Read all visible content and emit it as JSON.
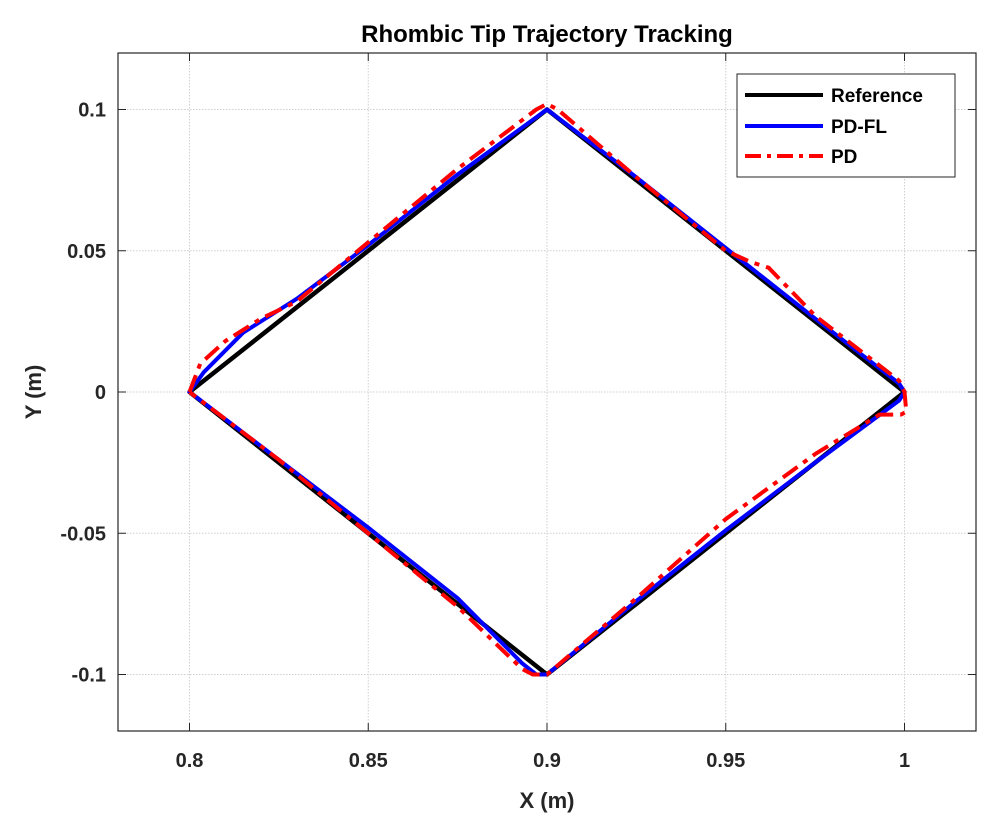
{
  "chart_data": {
    "type": "line",
    "title": "Rhombic Tip Trajectory Tracking",
    "xlabel": "X (m)",
    "ylabel": "Y (m)",
    "xlim": [
      0.78,
      1.02
    ],
    "ylim": [
      -0.12,
      0.12
    ],
    "xticks": [
      0.8,
      0.85,
      0.9,
      0.95,
      1.0
    ],
    "xtick_labels": [
      "0.8",
      "0.85",
      "0.9",
      "0.95",
      "1"
    ],
    "yticks": [
      -0.1,
      -0.05,
      0,
      0.05,
      0.1
    ],
    "ytick_labels": [
      "-0.1",
      "-0.05",
      "0",
      "0.05",
      "0.1"
    ],
    "grid": true,
    "legend_position": "top-right",
    "series": [
      {
        "name": "Reference",
        "color": "#000000",
        "style": "solid",
        "x": [
          0.8,
          0.9,
          1.0,
          0.9,
          0.8
        ],
        "y": [
          0.0,
          0.1,
          0.0,
          -0.1,
          0.0
        ]
      },
      {
        "name": "PD-FL",
        "color": "#0000ff",
        "style": "solid",
        "x": [
          0.8,
          0.804,
          0.815,
          0.83,
          0.85,
          0.875,
          0.9,
          0.925,
          0.95,
          0.975,
          0.9985,
          1.0,
          0.9985,
          0.975,
          0.95,
          0.925,
          0.9,
          0.897,
          0.893,
          0.875,
          0.85,
          0.825,
          0.8
        ],
        "y": [
          0.0,
          0.007,
          0.021,
          0.033,
          0.052,
          0.077,
          0.1,
          0.076,
          0.051,
          0.026,
          0.003,
          0.0,
          -0.003,
          -0.025,
          -0.049,
          -0.074,
          -0.1,
          -0.1,
          -0.096,
          -0.073,
          -0.048,
          -0.024,
          0.0
        ]
      },
      {
        "name": "PD",
        "color": "#ff0000",
        "style": "dashdot",
        "x": [
          0.8,
          0.803,
          0.81,
          0.82,
          0.83,
          0.85,
          0.875,
          0.897,
          0.9,
          0.903,
          0.925,
          0.95,
          0.957,
          0.962,
          0.975,
          0.9985,
          1.0,
          1.0005,
          0.999,
          0.993,
          0.975,
          0.95,
          0.925,
          0.9,
          0.896,
          0.893,
          0.875,
          0.85,
          0.825,
          0.8
        ],
        "y": [
          0.0,
          0.01,
          0.018,
          0.026,
          0.032,
          0.053,
          0.079,
          0.1,
          0.102,
          0.1,
          0.076,
          0.05,
          0.046,
          0.044,
          0.027,
          0.004,
          0.0,
          -0.007,
          -0.008,
          -0.008,
          -0.022,
          -0.045,
          -0.073,
          -0.1,
          -0.1,
          -0.098,
          -0.076,
          -0.05,
          -0.024,
          0.0
        ]
      }
    ]
  }
}
